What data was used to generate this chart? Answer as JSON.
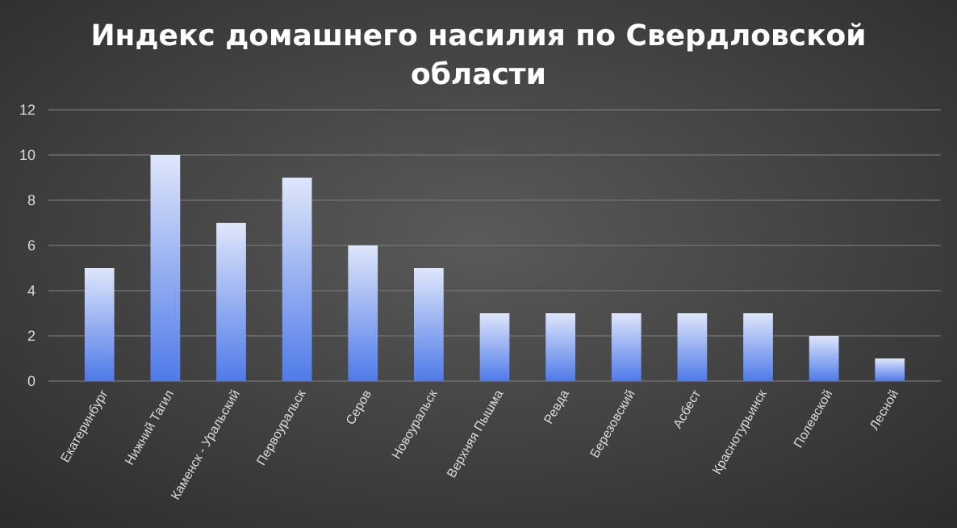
{
  "chart_data": {
    "type": "bar",
    "title": "Индекс домашнего насилия по Свердловской области",
    "categories": [
      "Екатеринбург",
      "Нижний Тагил",
      "Каменск - Уральский",
      "Первоуральск",
      "Серов",
      "Новоуральск",
      "Верхняя Пышма",
      "Ревда",
      "Березовский",
      "Асбест",
      "Краснотурьинск",
      "Полевской",
      "Лесной"
    ],
    "values": [
      5,
      10,
      7,
      9,
      6,
      5,
      3,
      3,
      3,
      3,
      3,
      2,
      1
    ],
    "color": "#4f7ae8",
    "ylim": [
      0,
      12
    ],
    "yticks": [
      0,
      2,
      4,
      6,
      8,
      10,
      12
    ],
    "grid": "y"
  }
}
